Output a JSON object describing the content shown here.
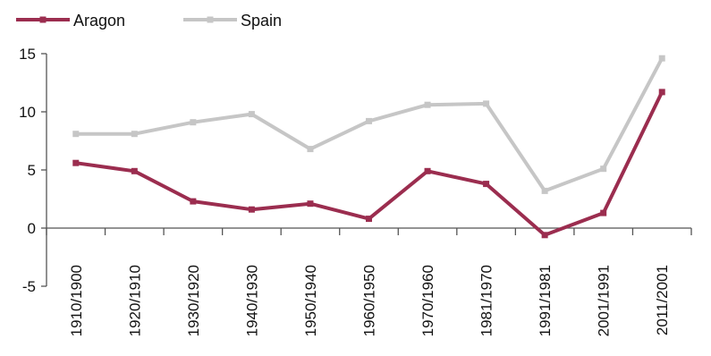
{
  "chart_data": {
    "type": "line",
    "categories": [
      "1910/1900",
      "1920/1910",
      "1930/1920",
      "1940/1930",
      "1950/1940",
      "1960/1950",
      "1970/1960",
      "1981/1970",
      "1991/1981",
      "2001/1991",
      "2011/2001"
    ],
    "series": [
      {
        "name": "Aragon",
        "color": "#9b2d4f",
        "values": [
          5.6,
          4.9,
          2.3,
          1.6,
          2.1,
          0.8,
          4.9,
          3.8,
          -0.6,
          1.3,
          11.7
        ]
      },
      {
        "name": "Spain",
        "color": "#c6c6c6",
        "values": [
          8.1,
          8.1,
          9.1,
          9.8,
          6.8,
          9.2,
          10.6,
          10.7,
          3.2,
          5.1,
          14.6
        ]
      }
    ],
    "yticks": [
      "-5",
      "0",
      "5",
      "10",
      "15"
    ],
    "ylim": [
      -5,
      15
    ],
    "legend": "top-left",
    "grid": false
  }
}
